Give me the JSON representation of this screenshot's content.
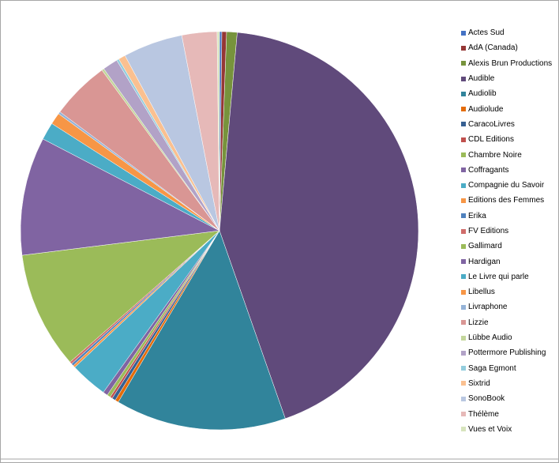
{
  "chart_data": {
    "type": "pie",
    "title": "",
    "start_angle_deg": 0,
    "direction": "clockwise",
    "legend_position": "right",
    "slices": [
      {
        "label": "Actes Sud",
        "value": 0.2,
        "color": "#4472c4"
      },
      {
        "label": "AdA (Canada)",
        "value": 0.4,
        "color": "#953735"
      },
      {
        "label": "Alexis Brun Productions",
        "value": 0.9,
        "color": "#77933c"
      },
      {
        "label": "Audible",
        "value": 45.5,
        "color": "#604a7b"
      },
      {
        "label": "Audiolib",
        "value": 14.6,
        "color": "#31849b"
      },
      {
        "label": "Audiolude",
        "value": 0.3,
        "color": "#e46c0a"
      },
      {
        "label": "CaracoLivres",
        "value": 0.3,
        "color": "#376092"
      },
      {
        "label": "CDL Editions",
        "value": 0.2,
        "color": "#c0504d"
      },
      {
        "label": "Chambre Noire",
        "value": 0.3,
        "color": "#9bbb59"
      },
      {
        "label": "Coffragants",
        "value": 0.4,
        "color": "#8064a2"
      },
      {
        "label": "Compagnie du Savoir",
        "value": 3.2,
        "color": "#4bacc6"
      },
      {
        "label": "Editions des Femmes",
        "value": 0.2,
        "color": "#f79646"
      },
      {
        "label": "Erika",
        "value": 0.2,
        "color": "#4f81bd"
      },
      {
        "label": "FV Editions",
        "value": 0.2,
        "color": "#d06c6a"
      },
      {
        "label": "Gallimard",
        "value": 10.0,
        "color": "#9bbb59"
      },
      {
        "label": "Hardigan",
        "value": 10.1,
        "color": "#8064a2"
      },
      {
        "label": "Le Livre qui parle",
        "value": 1.5,
        "color": "#4bacc6"
      },
      {
        "label": "Libellus",
        "value": 1.0,
        "color": "#f79646"
      },
      {
        "label": "Livraphone",
        "value": 0.2,
        "color": "#95b3d7"
      },
      {
        "label": "Lizzie",
        "value": 5.0,
        "color": "#d99694"
      },
      {
        "label": "Lübbe Audio",
        "value": 0.2,
        "color": "#c3d69b"
      },
      {
        "label": "Pottermore Publishing",
        "value": 1.3,
        "color": "#b2a2c7"
      },
      {
        "label": "Saga Egmont",
        "value": 0.2,
        "color": "#93cddd"
      },
      {
        "label": "Sixtrid",
        "value": 0.6,
        "color": "#fac090"
      },
      {
        "label": "SonoBook",
        "value": 5.1,
        "color": "#b9c7e1"
      },
      {
        "label": "Thélème",
        "value": 3.0,
        "color": "#e6b9b8"
      },
      {
        "label": "Vues et Voix",
        "value": 0.2,
        "color": "#d7e4bd"
      }
    ]
  }
}
